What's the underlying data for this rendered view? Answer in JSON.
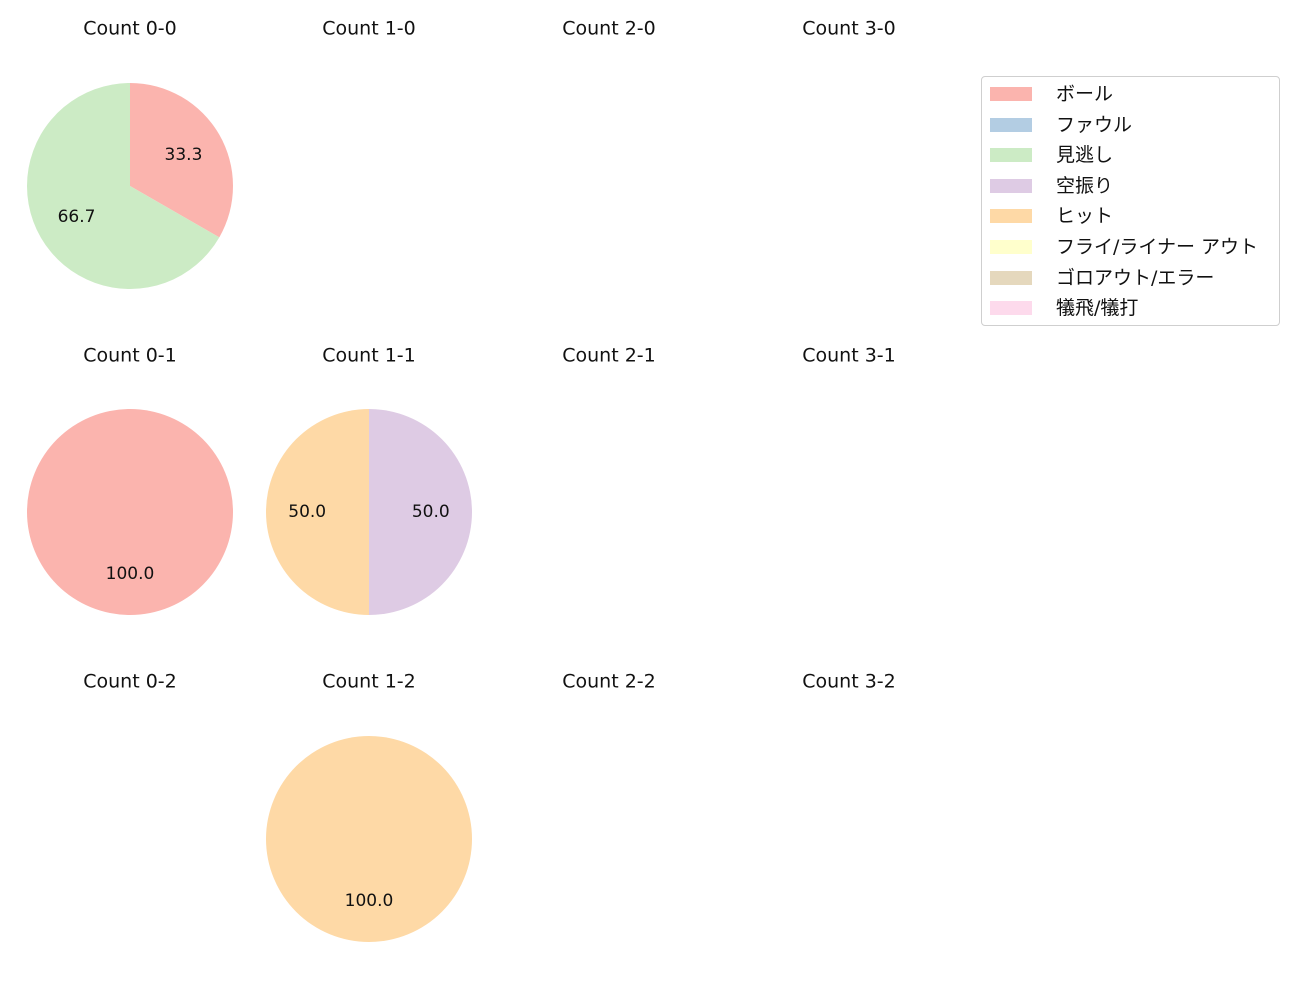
{
  "chart_data": {
    "type": "pie",
    "legend": {
      "placement": "top-right",
      "entries": [
        {
          "label": "ボール",
          "color": "#fbb4ae"
        },
        {
          "label": "ファウル",
          "color": "#b3cde3"
        },
        {
          "label": "見逃し",
          "color": "#ccebc5"
        },
        {
          "label": "空振り",
          "color": "#decbe4"
        },
        {
          "label": "ヒット",
          "color": "#fed9a6"
        },
        {
          "label": "フライ/ライナー アウト",
          "color": "#ffffcc"
        },
        {
          "label": "ゴロアウト/エラー",
          "color": "#e5d8bd"
        },
        {
          "label": "犠飛/犠打",
          "color": "#fddaec"
        }
      ]
    },
    "panels": [
      {
        "title": "Count 0-0",
        "slices": [
          {
            "label": "ボール",
            "value": 33.3
          },
          {
            "label": "見逃し",
            "value": 66.7
          }
        ]
      },
      {
        "title": "Count 1-0",
        "slices": []
      },
      {
        "title": "Count 2-0",
        "slices": []
      },
      {
        "title": "Count 3-0",
        "slices": []
      },
      {
        "title": "Count 0-1",
        "slices": [
          {
            "label": "ボール",
            "value": 100.0
          }
        ]
      },
      {
        "title": "Count 1-1",
        "slices": [
          {
            "label": "空振り",
            "value": 50.0
          },
          {
            "label": "ヒット",
            "value": 50.0
          }
        ]
      },
      {
        "title": "Count 2-1",
        "slices": []
      },
      {
        "title": "Count 3-1",
        "slices": []
      },
      {
        "title": "Count 0-2",
        "slices": []
      },
      {
        "title": "Count 1-2",
        "slices": [
          {
            "label": "ヒット",
            "value": 100.0
          }
        ]
      },
      {
        "title": "Count 2-2",
        "slices": []
      },
      {
        "title": "Count 3-2",
        "slices": []
      }
    ]
  }
}
